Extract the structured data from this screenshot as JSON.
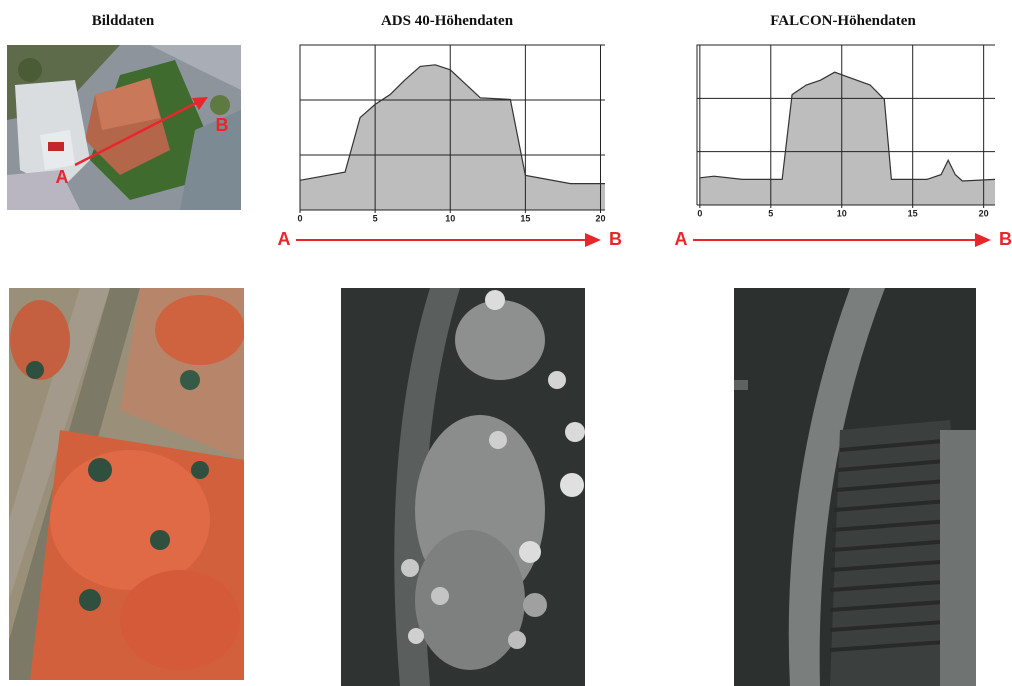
{
  "headings": {
    "image": "Bilddaten"
  },
  "photo_labels": [
    "A",
    "B"
  ],
  "chart_data": [
    {
      "type": "area",
      "title": "ADS 40-Höhendaten",
      "x": [
        0,
        3,
        4,
        5,
        6,
        7,
        8,
        9,
        10,
        12,
        14,
        15,
        18,
        20.3
      ],
      "values": [
        1.8,
        2.3,
        5.6,
        6.4,
        7.0,
        7.9,
        8.7,
        8.8,
        8.5,
        6.8,
        6.7,
        2.1,
        1.6,
        1.6
      ],
      "xlim": [
        0,
        20.3
      ],
      "ylim": [
        0,
        10
      ],
      "xticks": [
        0,
        5,
        10,
        15,
        20
      ],
      "color": "#bdbdbd",
      "axis_labels": [
        "A",
        "B"
      ]
    },
    {
      "type": "area",
      "title": "FALCON-Höhendaten",
      "x": [
        0,
        1,
        3,
        5.8,
        6.5,
        7.5,
        8.5,
        9.5,
        12,
        13,
        13.5,
        16,
        17,
        17.5,
        18,
        18.5,
        20.8
      ],
      "values": [
        1.7,
        1.8,
        1.6,
        1.6,
        6.9,
        7.5,
        7.8,
        8.3,
        7.5,
        6.6,
        1.6,
        1.6,
        1.9,
        2.8,
        1.9,
        1.5,
        1.6
      ],
      "xlim": [
        -0.2,
        20.8
      ],
      "ylim": [
        0,
        10
      ],
      "xticks": [
        0,
        5,
        10,
        15,
        20
      ],
      "color": "#bdbdbd",
      "axis_labels": [
        "A",
        "B"
      ]
    }
  ]
}
